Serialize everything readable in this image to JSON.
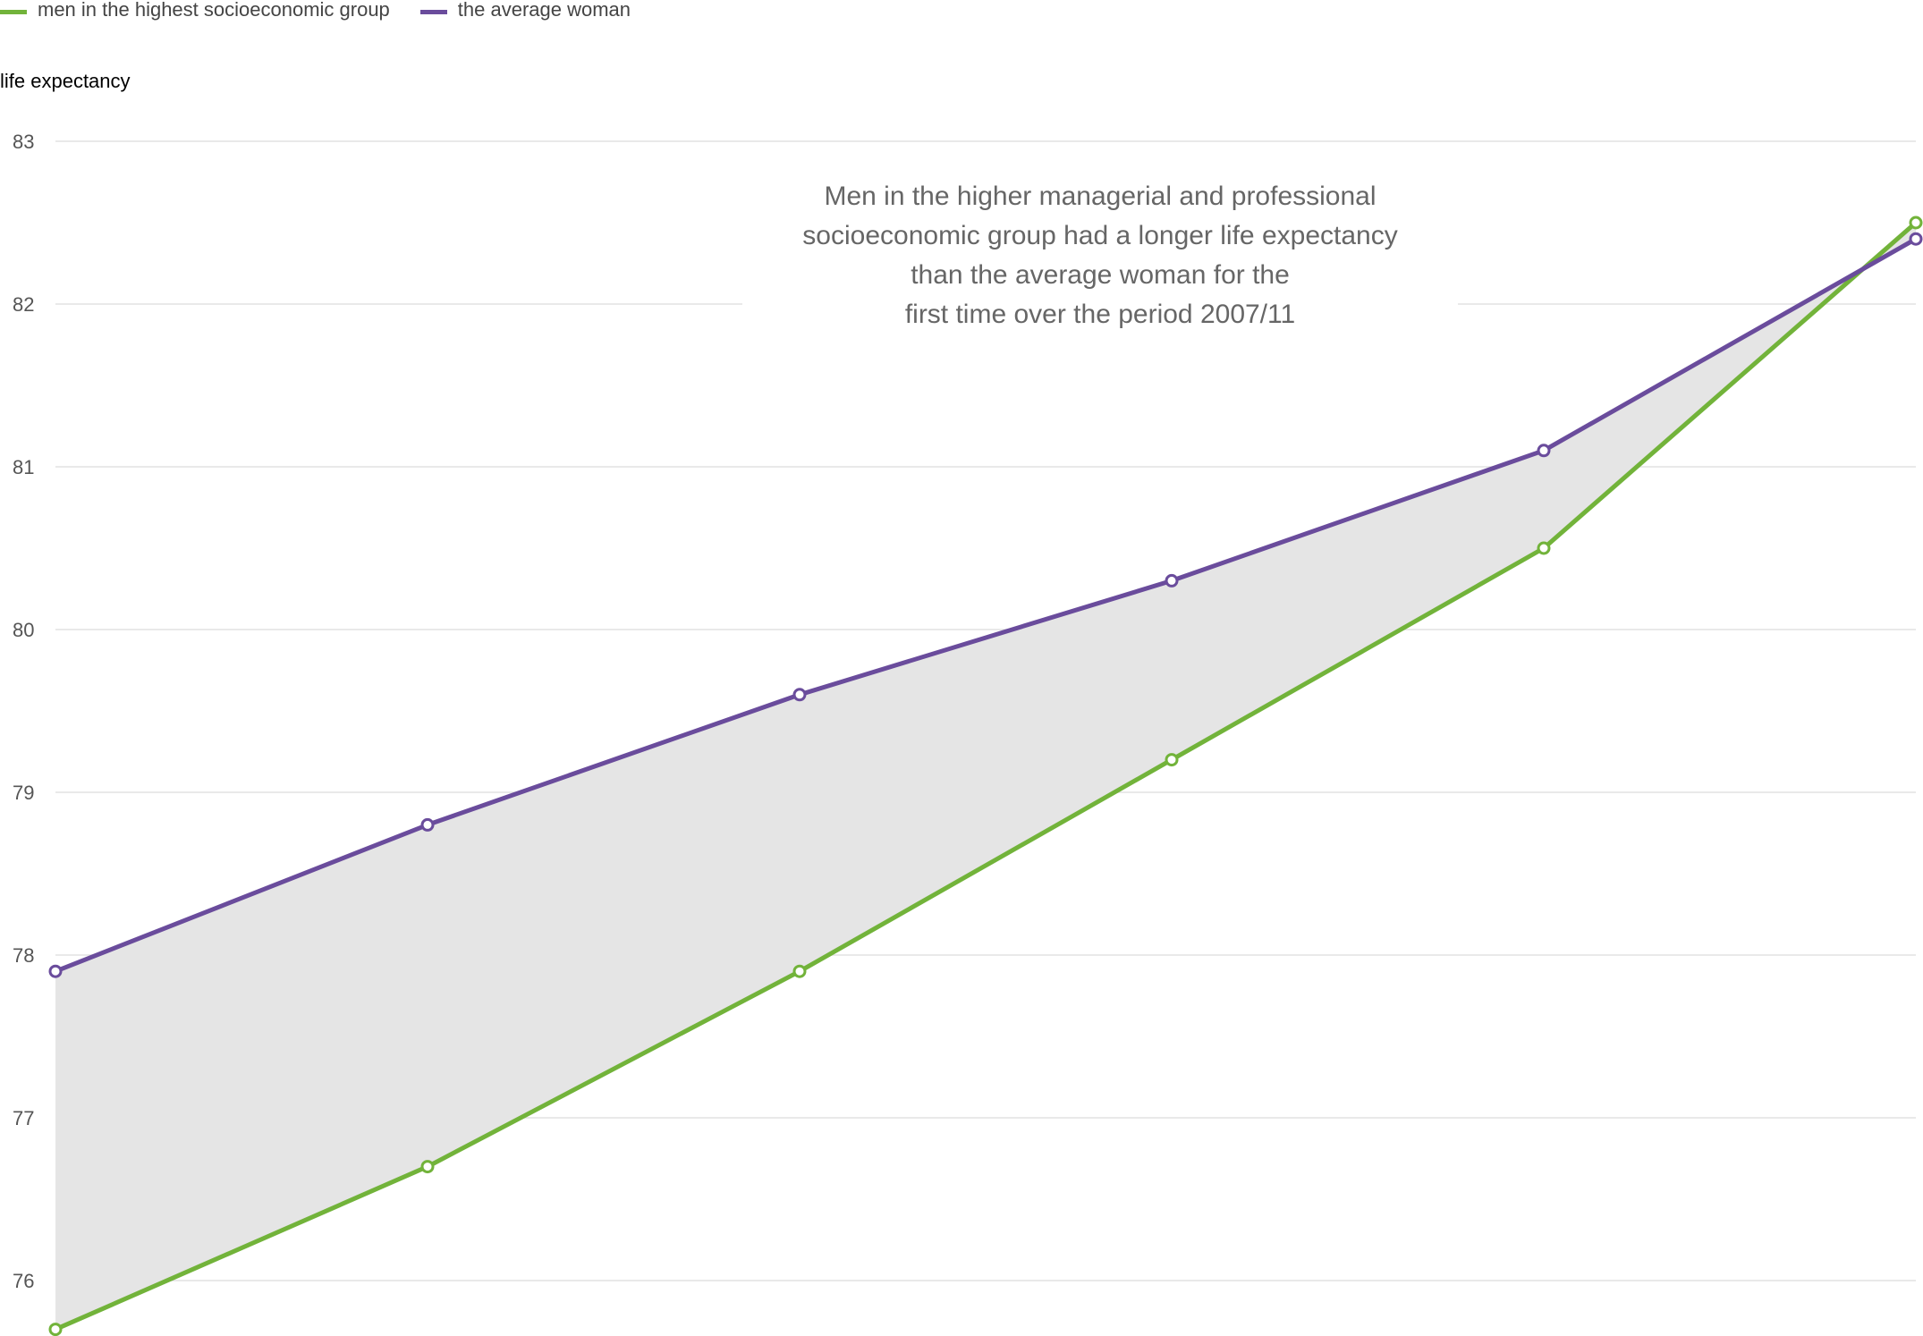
{
  "legend": {
    "items": [
      {
        "label": "men in the highest socioeconomic group",
        "color": "#72b33a"
      },
      {
        "label": "the average woman",
        "color": "#6a4c9c"
      }
    ]
  },
  "annotation": {
    "text": "Men in the higher managerial and professional\nsocioeconomic group had a longer life expectancy\nthan the average woman for the\nfirst time over the period 2007/11"
  },
  "chart_data": {
    "type": "line",
    "title": "",
    "xlabel": "",
    "ylabel": "life expectancy",
    "ylim": [
      76,
      83
    ],
    "yticks": [
      76,
      77,
      78,
      79,
      80,
      81,
      82,
      83
    ],
    "grid": true,
    "legend_position": "top-left",
    "gap_fill_color": "#e5e5e5",
    "x": [
      1,
      2,
      3,
      4,
      5,
      6
    ],
    "series": [
      {
        "name": "men in the highest socioeconomic group",
        "color": "#72b33a",
        "values": [
          75.7,
          76.7,
          77.9,
          79.2,
          80.5,
          82.5
        ]
      },
      {
        "name": "the average woman",
        "color": "#6a4c9c",
        "values": [
          77.9,
          78.8,
          79.6,
          80.3,
          81.1,
          82.4
        ]
      }
    ]
  }
}
